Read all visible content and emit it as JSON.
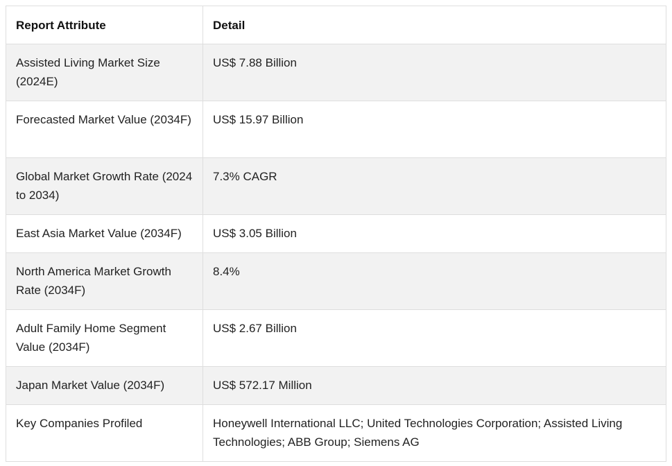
{
  "table": {
    "headers": [
      "Report Attribute",
      "Detail"
    ],
    "rows": [
      {
        "attribute": "Assisted Living Market Size (2024E)",
        "detail": "US$ 7.88 Billion"
      },
      {
        "attribute": "Forecasted Market Value (2034F)",
        "detail": "US$ 15.97 Billion"
      },
      {
        "attribute": "Global Market Growth Rate (2024 to 2034)",
        "detail": "7.3% CAGR"
      },
      {
        "attribute": "East Asia Market Value (2034F)",
        "detail": "US$ 3.05 Billion"
      },
      {
        "attribute": "North America Market Growth Rate (2034F)",
        "detail": "8.4%"
      },
      {
        "attribute": "Adult Family Home Segment Value (2034F)",
        "detail": "US$ 2.67 Billion"
      },
      {
        "attribute": "Japan Market Value (2034F)",
        "detail": "US$ 572.17 Million"
      },
      {
        "attribute": "Key Companies Profiled",
        "detail": "Honeywell International LLC; United Technologies Corporation; Assisted Living Technologies; ABB Group; Siemens AG"
      }
    ]
  }
}
